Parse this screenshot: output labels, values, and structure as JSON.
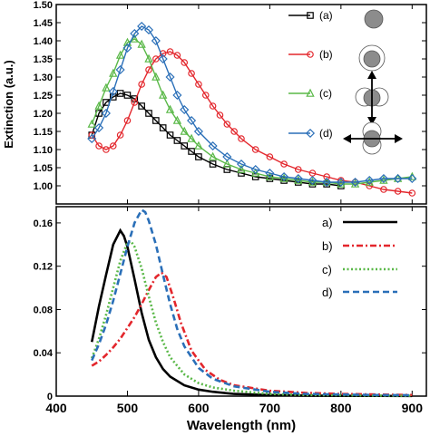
{
  "colors": {
    "a": "#000000",
    "b": "#e3262c",
    "c": "#59b847",
    "d": "#2a6fb8"
  },
  "chart_data": [
    {
      "type": "line",
      "panel": "top",
      "ylabel": "Extinction (a.u.)",
      "ylim": [
        0.95,
        1.5
      ],
      "xlim": [
        400,
        920
      ],
      "yticks": [
        "1.00",
        "1.05",
        "1.10",
        "1.15",
        "1.20",
        "1.25",
        "1.30",
        "1.35",
        "1.40",
        "1.45",
        "1.50"
      ],
      "legend": {
        "placement": "top-right",
        "icons": [
          "single-sphere-icon",
          "core-shell-icon",
          "vertical-dimer-icon",
          "horizontal-dimer-icon"
        ]
      },
      "series": [
        {
          "name": "(a)",
          "marker": "square",
          "color": "#000000",
          "x": [
            450,
            460,
            470,
            480,
            490,
            500,
            510,
            520,
            530,
            540,
            550,
            560,
            570,
            580,
            590,
            600,
            620,
            640,
            660,
            680,
            700,
            720,
            740,
            760,
            780,
            800
          ],
          "y": [
            1.14,
            1.2,
            1.23,
            1.245,
            1.255,
            1.25,
            1.24,
            1.22,
            1.2,
            1.18,
            1.16,
            1.14,
            1.125,
            1.11,
            1.095,
            1.08,
            1.06,
            1.045,
            1.035,
            1.025,
            1.02,
            1.015,
            1.01,
            1.005,
            1.005,
            1.0
          ]
        },
        {
          "name": "(b)",
          "marker": "circle",
          "color": "#e3262c",
          "x": [
            450,
            460,
            470,
            480,
            490,
            500,
            510,
            520,
            530,
            540,
            550,
            560,
            570,
            580,
            590,
            600,
            610,
            620,
            630,
            640,
            650,
            660,
            680,
            700,
            720,
            740,
            760,
            780,
            800,
            820,
            840,
            860,
            880,
            900
          ],
          "y": [
            1.14,
            1.11,
            1.1,
            1.11,
            1.14,
            1.18,
            1.23,
            1.28,
            1.32,
            1.35,
            1.365,
            1.37,
            1.36,
            1.34,
            1.31,
            1.28,
            1.25,
            1.22,
            1.195,
            1.17,
            1.15,
            1.13,
            1.1,
            1.08,
            1.06,
            1.045,
            1.035,
            1.025,
            1.015,
            1.01,
            1.0,
            0.99,
            0.985,
            0.98
          ]
        },
        {
          "name": "(c)",
          "marker": "triangle",
          "color": "#59b847",
          "x": [
            450,
            460,
            470,
            480,
            490,
            500,
            510,
            520,
            530,
            540,
            550,
            560,
            570,
            580,
            590,
            600,
            620,
            640,
            660,
            680,
            700,
            720,
            740,
            760,
            780,
            800,
            820,
            840,
            860,
            880,
            900
          ],
          "y": [
            1.17,
            1.22,
            1.27,
            1.31,
            1.36,
            1.395,
            1.405,
            1.39,
            1.35,
            1.3,
            1.25,
            1.21,
            1.18,
            1.15,
            1.13,
            1.11,
            1.08,
            1.06,
            1.045,
            1.035,
            1.025,
            1.02,
            1.015,
            1.01,
            1.01,
            1.005,
            1.005,
            1.01,
            1.015,
            1.02,
            1.025
          ]
        },
        {
          "name": "(d)",
          "marker": "diamond",
          "color": "#2a6fb8",
          "x": [
            450,
            460,
            470,
            480,
            490,
            500,
            510,
            520,
            530,
            540,
            550,
            560,
            570,
            580,
            590,
            600,
            620,
            640,
            660,
            680,
            700,
            720,
            740,
            760,
            780,
            800,
            820,
            840,
            860,
            880,
            900
          ],
          "y": [
            1.13,
            1.16,
            1.2,
            1.26,
            1.32,
            1.38,
            1.42,
            1.44,
            1.43,
            1.4,
            1.35,
            1.3,
            1.25,
            1.21,
            1.18,
            1.15,
            1.11,
            1.08,
            1.06,
            1.045,
            1.035,
            1.025,
            1.02,
            1.015,
            1.01,
            1.01,
            1.01,
            1.015,
            1.02,
            1.02,
            1.02
          ]
        }
      ]
    },
    {
      "type": "line",
      "panel": "bottom",
      "xlabel": "Wavelength (nm)",
      "xlim": [
        400,
        920
      ],
      "ylim": [
        0,
        0.175
      ],
      "xticks": [
        "400",
        "500",
        "600",
        "700",
        "800",
        "900"
      ],
      "yticks": [
        "0",
        "0.04",
        "0.08",
        "0.12",
        "0.16"
      ],
      "legend": {
        "placement": "top-right"
      },
      "series": [
        {
          "name": "a)",
          "style": "solid",
          "color": "#000000",
          "x": [
            450,
            460,
            470,
            480,
            490,
            495,
            500,
            510,
            520,
            530,
            540,
            550,
            560,
            580,
            600,
            620,
            650,
            700,
            750,
            800,
            850,
            900
          ],
          "y": [
            0.05,
            0.083,
            0.112,
            0.14,
            0.153,
            0.148,
            0.138,
            0.108,
            0.077,
            0.052,
            0.036,
            0.025,
            0.018,
            0.01,
            0.006,
            0.004,
            0.002,
            0.001,
            0.0005,
            0.0003,
            0.0002,
            0.0001
          ]
        },
        {
          "name": "b)",
          "style": "dashdot",
          "color": "#e3262c",
          "x": [
            450,
            460,
            470,
            480,
            490,
            500,
            510,
            520,
            530,
            540,
            548,
            555,
            565,
            575,
            590,
            610,
            630,
            650,
            700,
            750,
            800,
            850,
            900
          ],
          "y": [
            0.028,
            0.032,
            0.038,
            0.045,
            0.053,
            0.063,
            0.073,
            0.085,
            0.098,
            0.11,
            0.114,
            0.11,
            0.09,
            0.068,
            0.042,
            0.024,
            0.015,
            0.01,
            0.005,
            0.003,
            0.002,
            0.0015,
            0.001
          ]
        },
        {
          "name": "c)",
          "style": "dotted",
          "color": "#59b847",
          "x": [
            450,
            460,
            470,
            480,
            490,
            500,
            505,
            510,
            520,
            530,
            540,
            550,
            560,
            580,
            600,
            620,
            650,
            700,
            750,
            800,
            850,
            900
          ],
          "y": [
            0.035,
            0.053,
            0.075,
            0.1,
            0.125,
            0.142,
            0.143,
            0.138,
            0.118,
            0.092,
            0.068,
            0.05,
            0.036,
            0.02,
            0.012,
            0.008,
            0.005,
            0.002,
            0.001,
            0.0008,
            0.0005,
            0.0003
          ]
        },
        {
          "name": "d)",
          "style": "dashed",
          "color": "#2a6fb8",
          "x": [
            450,
            460,
            470,
            480,
            490,
            500,
            510,
            520,
            525,
            530,
            540,
            550,
            560,
            570,
            580,
            600,
            620,
            650,
            700,
            750,
            800,
            850,
            900
          ],
          "y": [
            0.033,
            0.048,
            0.066,
            0.088,
            0.113,
            0.138,
            0.16,
            0.172,
            0.17,
            0.162,
            0.14,
            0.112,
            0.085,
            0.062,
            0.046,
            0.026,
            0.016,
            0.009,
            0.004,
            0.002,
            0.0015,
            0.001,
            0.0008
          ]
        }
      ]
    }
  ]
}
